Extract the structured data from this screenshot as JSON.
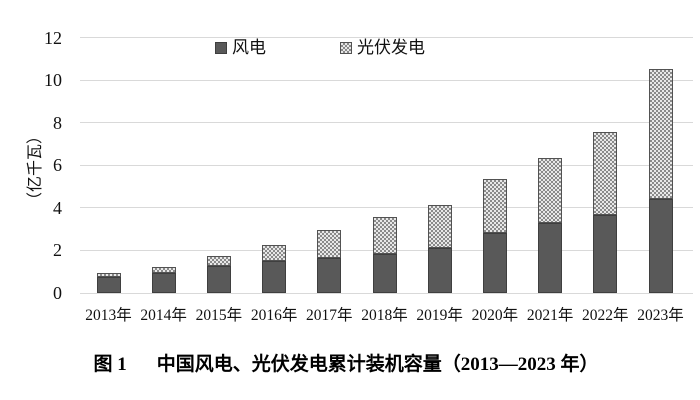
{
  "chart_data": {
    "type": "bar",
    "stacked": true,
    "title": "",
    "xlabel": "",
    "ylabel": "（亿千瓦）",
    "ylim": [
      0,
      12
    ],
    "yticks": [
      0,
      2,
      4,
      6,
      8,
      10,
      12
    ],
    "grid": "horizontal-light-gray",
    "legend_position": "top-center-inside",
    "categories": [
      "2013年",
      "2014年",
      "2015年",
      "2016年",
      "2017年",
      "2018年",
      "2019年",
      "2020年",
      "2021年",
      "2022年",
      "2023年"
    ],
    "series": [
      {
        "name": "风电",
        "pattern": "solid",
        "color": "#595959",
        "values": [
          0.77,
          0.96,
          1.29,
          1.49,
          1.64,
          1.84,
          2.1,
          2.81,
          3.28,
          3.65,
          4.41
        ]
      },
      {
        "name": "光伏发电",
        "pattern": "checkerboard-dots",
        "color": "#e8e8e8",
        "dot_color": "#8a8a8a",
        "values": [
          0.19,
          0.28,
          0.43,
          0.77,
          1.3,
          1.74,
          2.04,
          2.53,
          3.06,
          3.93,
          6.09
        ]
      }
    ]
  },
  "caption": {
    "prefix": "图 1",
    "text": "中国风电、光伏发电累计装机容量（2013—2023 年）"
  },
  "colors": {
    "background": "#ffffff",
    "gridline": "#d9d9d9",
    "text": "#111111",
    "wind_fill": "#595959",
    "wind_border": "#3f3f3f",
    "solar_background": "#e8e8e8",
    "solar_dot": "#8a8a8a",
    "solar_border": "#525252"
  }
}
